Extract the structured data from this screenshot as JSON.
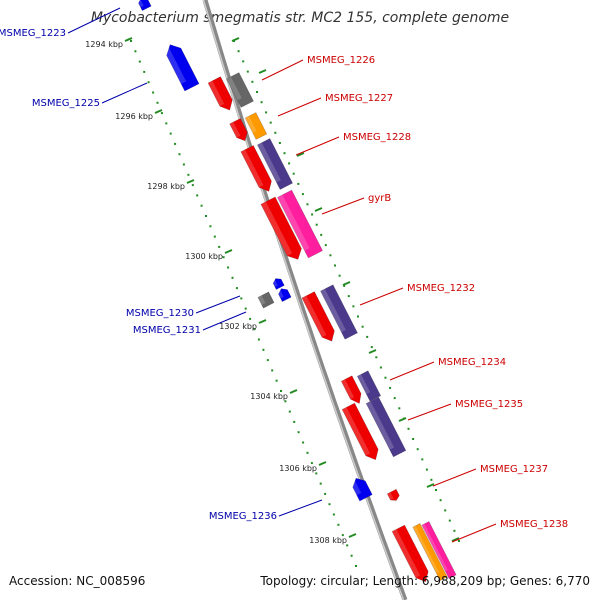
{
  "title": "Mycobacterium smegmatis str. MC2 155, complete genome",
  "footer": {
    "accession": "Accession: NC_008596",
    "summary": "Topology: circular; Length: 6,988,209 bp; Genes: 6,770"
  },
  "colors": {
    "backbone": "#888888",
    "backbone_highlight": "#cccccc",
    "tick": "#228b22",
    "forward_label": "#cc0000",
    "reverse_label": "#0000aa",
    "cds": "#ee0000",
    "cds_reverse": "#0000ee",
    "gray": "#666666",
    "purple": "#4b3a8c",
    "orange": "#ff9900",
    "pink": "#ff1e9e"
  },
  "ticks": [
    {
      "label": "1294 kbp"
    },
    {
      "label": "1296 kbp"
    },
    {
      "label": "1298 kbp"
    },
    {
      "label": "1300 kbp"
    },
    {
      "label": "1302 kbp"
    },
    {
      "label": "1304 kbp"
    },
    {
      "label": "1306 kbp"
    },
    {
      "label": "1308 kbp"
    }
  ],
  "forward_labels": [
    {
      "text": "MSMEG_1226"
    },
    {
      "text": "MSMEG_1227"
    },
    {
      "text": "MSMEG_1228"
    },
    {
      "text": "gyrB"
    },
    {
      "text": "MSMEG_1232"
    },
    {
      "text": "MSMEG_1234"
    },
    {
      "text": "MSMEG_1235"
    },
    {
      "text": "MSMEG_1237"
    },
    {
      "text": "MSMEG_1238"
    }
  ],
  "reverse_labels": [
    {
      "text": "MSMEG_1223"
    },
    {
      "text": "MSMEG_1225"
    },
    {
      "text": "MSMEG_1230"
    },
    {
      "text": "MSMEG_1231"
    },
    {
      "text": "MSMEG_1236"
    }
  ]
}
